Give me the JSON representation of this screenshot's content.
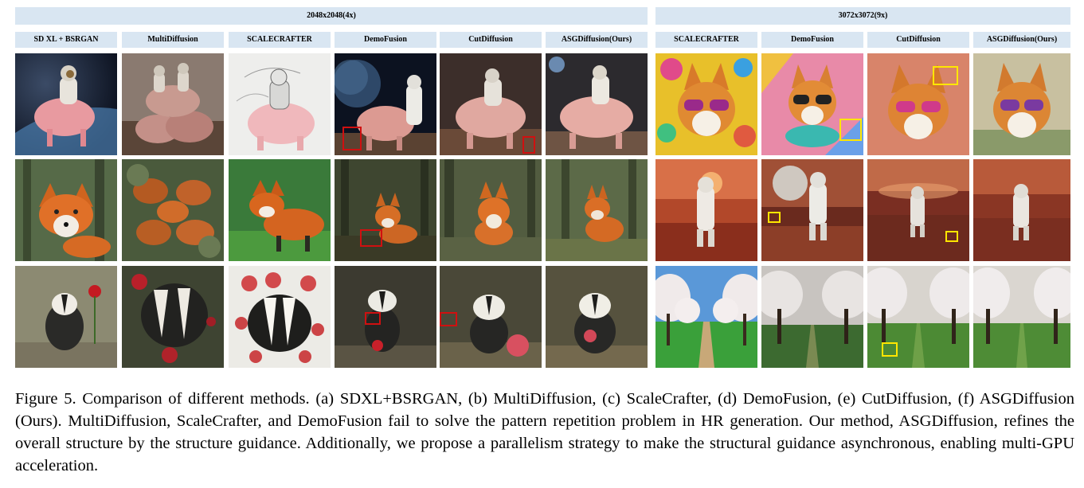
{
  "groups": [
    {
      "label": "2048x2048(4x)",
      "methods": [
        "SD XL + BSRGAN",
        "MultiDiffusion",
        "SCALECRAFTER",
        "DemoFusion",
        "CutDiffusion",
        "ASGDiffusion(Ours)"
      ]
    },
    {
      "label": "3072x3072(9x)",
      "methods": [
        "SCALECRAFTER",
        "DemoFusion",
        "CutDiffusion",
        "ASGDiffusion(Ours)"
      ]
    }
  ],
  "rows": {
    "left": [
      "astronaut-riding-pig",
      "red-fox-in-forest",
      "badger-with-rose"
    ],
    "right": [
      "corgi-with-sunglasses",
      "astronaut-on-mars",
      "blossom-orchard-path"
    ]
  },
  "colors": {
    "header_bg": "#d9e6f2",
    "highlight_red": "#d01010",
    "highlight_yellow": "#ffe600"
  },
  "caption": "Figure 5. Comparison of different methods. (a) SDXL+BSRGAN, (b) MultiDiffusion, (c) ScaleCrafter, (d) DemoFusion, (e) CutDiffusion, (f) ASGDiffusion (Ours). MultiDiffusion, ScaleCrafter, and DemoFusion fail to solve the pattern repetition problem in HR generation. Our method, ASGDiffusion, refines the overall structure by the structure guidance. Additionally, we propose a parallelism strategy to make the structural guidance asynchronous, enabling multi-GPU acceleration."
}
